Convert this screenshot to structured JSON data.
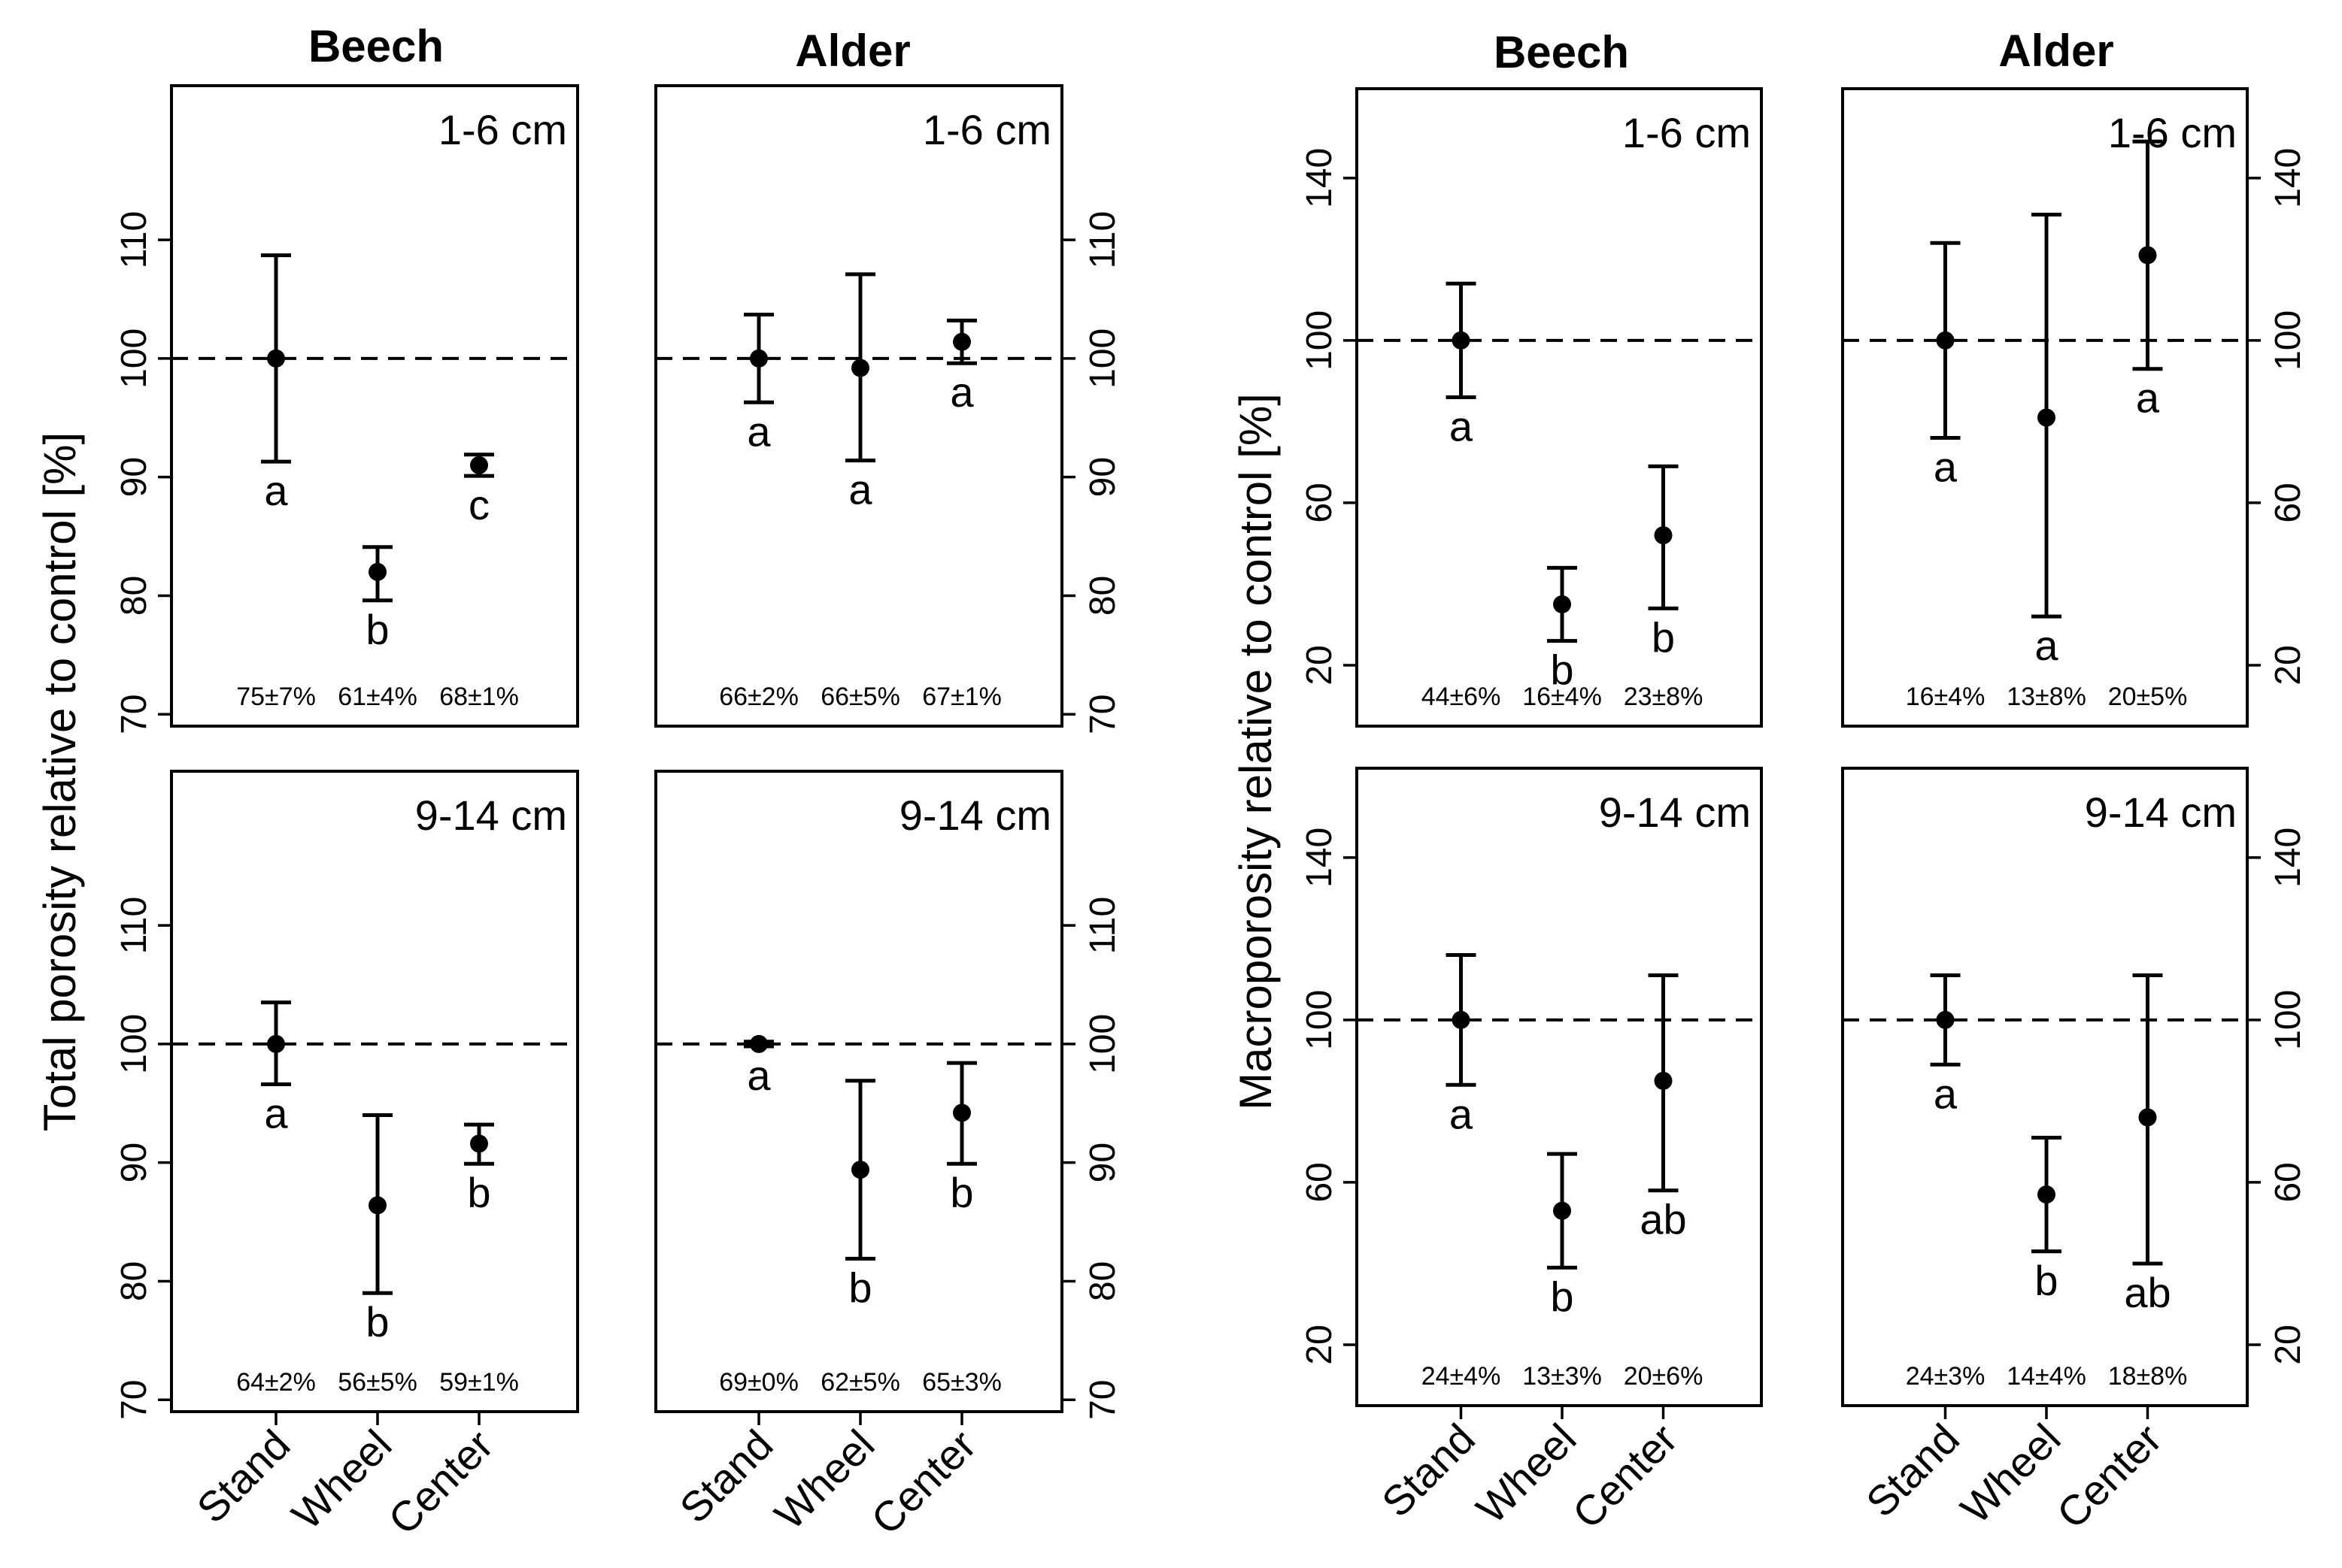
{
  "left_group": {
    "col_titles": [
      "Beech",
      "Alder"
    ],
    "ylabel": "Total porosity relative to control [%]"
  },
  "right_group": {
    "col_titles": [
      "Beech",
      "Alder"
    ],
    "ylabel": "Macroporosity relative to control [%]"
  },
  "x_categories": [
    "Stand",
    "Wheel",
    "Center"
  ],
  "chart_data": [
    {
      "type": "scatter",
      "group": "left",
      "species": "Beech",
      "depth": "1-6 cm",
      "ylim": [
        69,
        123
      ],
      "yticks": [
        70,
        80,
        90,
        100,
        110
      ],
      "reference": 100,
      "categories": [
        "Stand",
        "Wheel",
        "Center"
      ],
      "values": [
        100,
        82,
        91
      ],
      "lower": [
        91.3,
        79.6,
        90.1
      ],
      "upper": [
        108.7,
        84.1,
        91.9
      ],
      "letters": [
        "a",
        "b",
        "c"
      ],
      "stats": [
        "75±7%",
        "61±4%",
        "68±1%"
      ]
    },
    {
      "type": "scatter",
      "group": "left",
      "species": "Alder",
      "depth": "1-6 cm",
      "ylim": [
        69,
        123
      ],
      "yticks": [
        70,
        80,
        90,
        100,
        110
      ],
      "reference": 100,
      "categories": [
        "Stand",
        "Wheel",
        "Center"
      ],
      "values": [
        100,
        99.2,
        101.4
      ],
      "lower": [
        96.3,
        91.4,
        99.6
      ],
      "upper": [
        103.7,
        107.1,
        103.2
      ],
      "letters": [
        "a",
        "a",
        "a"
      ],
      "stats": [
        "66±2%",
        "66±5%",
        "67±1%"
      ]
    },
    {
      "type": "scatter",
      "group": "left",
      "species": "Beech",
      "depth": "9-14 cm",
      "ylim": [
        69,
        123
      ],
      "yticks": [
        70,
        80,
        90,
        100,
        110
      ],
      "reference": 100,
      "categories": [
        "Stand",
        "Wheel",
        "Center"
      ],
      "values": [
        100,
        86.4,
        91.6
      ],
      "lower": [
        96.6,
        79,
        89.9
      ],
      "upper": [
        103.5,
        94,
        93.2
      ],
      "letters": [
        "a",
        "b",
        "b"
      ],
      "stats": [
        "64±2%",
        "56±5%",
        "59±1%"
      ]
    },
    {
      "type": "scatter",
      "group": "left",
      "species": "Alder",
      "depth": "9-14 cm",
      "ylim": [
        69,
        123
      ],
      "yticks": [
        70,
        80,
        90,
        100,
        110
      ],
      "reference": 100,
      "categories": [
        "Stand",
        "Wheel",
        "Center"
      ],
      "values": [
        100,
        89.4,
        94.2
      ],
      "lower": [
        99.8,
        81.9,
        89.9
      ],
      "upper": [
        100.2,
        96.9,
        98.4
      ],
      "letters": [
        "a",
        "b",
        "b"
      ],
      "stats": [
        "69±0%",
        "62±5%",
        "65±3%"
      ]
    },
    {
      "type": "scatter",
      "group": "right",
      "species": "Beech",
      "depth": "1-6 cm",
      "ylim": [
        5,
        162
      ],
      "yticks": [
        20,
        60,
        100,
        140
      ],
      "reference": 100,
      "categories": [
        "Stand",
        "Wheel",
        "Center"
      ],
      "values": [
        100,
        35,
        52
      ],
      "lower": [
        86,
        26,
        34
      ],
      "upper": [
        114,
        44,
        69
      ],
      "letters": [
        "a",
        "b",
        "b"
      ],
      "stats": [
        "44±6%",
        "16±4%",
        "23±8%"
      ]
    },
    {
      "type": "scatter",
      "group": "right",
      "species": "Alder",
      "depth": "1-6 cm",
      "ylim": [
        5,
        162
      ],
      "yticks": [
        20,
        60,
        100,
        140
      ],
      "reference": 100,
      "categories": [
        "Stand",
        "Wheel",
        "Center"
      ],
      "values": [
        100,
        81,
        121
      ],
      "lower": [
        76,
        32,
        93
      ],
      "upper": [
        124,
        131,
        149
      ],
      "letters": [
        "a",
        "a",
        "a"
      ],
      "stats": [
        "16±4%",
        "13±8%",
        "20±5%"
      ]
    },
    {
      "type": "scatter",
      "group": "right",
      "species": "Beech",
      "depth": "9-14 cm",
      "ylim": [
        5,
        162
      ],
      "yticks": [
        20,
        60,
        100,
        140
      ],
      "reference": 100,
      "categories": [
        "Stand",
        "Wheel",
        "Center"
      ],
      "values": [
        100,
        53,
        85
      ],
      "lower": [
        84,
        39,
        58
      ],
      "upper": [
        116,
        67,
        111
      ],
      "letters": [
        "a",
        "b",
        "ab"
      ],
      "stats": [
        "24±4%",
        "13±3%",
        "20±6%"
      ]
    },
    {
      "type": "scatter",
      "group": "right",
      "species": "Alder",
      "depth": "9-14 cm",
      "ylim": [
        5,
        162
      ],
      "yticks": [
        20,
        60,
        100,
        140
      ],
      "reference": 100,
      "categories": [
        "Stand",
        "Wheel",
        "Center"
      ],
      "values": [
        100,
        57,
        76
      ],
      "lower": [
        89,
        43,
        40
      ],
      "upper": [
        111,
        71,
        111
      ],
      "letters": [
        "a",
        "b",
        "ab"
      ],
      "stats": [
        "24±3%",
        "14±4%",
        "18±8%"
      ]
    }
  ]
}
